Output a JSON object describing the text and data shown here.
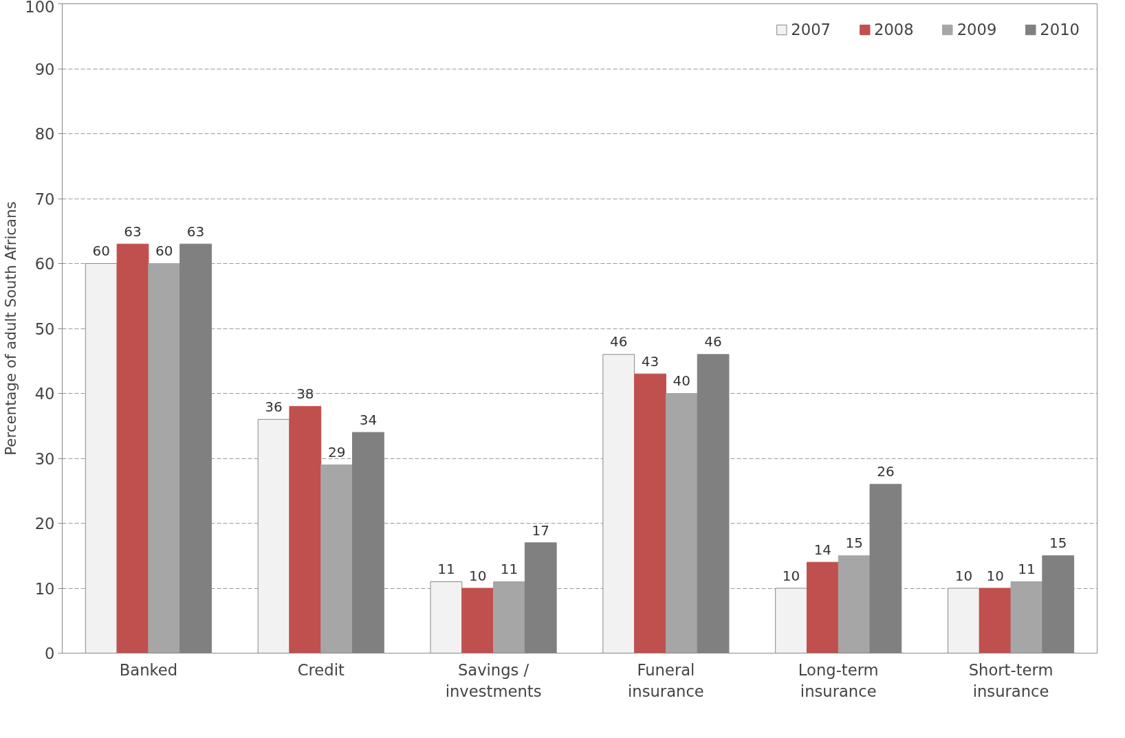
{
  "chart_data": {
    "type": "bar",
    "ylabel": "Percentage of adult South Africans",
    "categories": [
      "Banked",
      "Credit",
      "Savings / investments",
      "Funeral insurance",
      "Long-term insurance",
      "Short-term insurance"
    ],
    "series": [
      {
        "name": "2007",
        "color": "#f2f2f2",
        "values": [
          60,
          36,
          11,
          46,
          10,
          10
        ]
      },
      {
        "name": "2008",
        "color": "#c0504d",
        "values": [
          63,
          38,
          10,
          43,
          14,
          10
        ]
      },
      {
        "name": "2009",
        "color": "#a6a6a6",
        "values": [
          60,
          29,
          11,
          40,
          15,
          11
        ]
      },
      {
        "name": "2010",
        "color": "#808080",
        "values": [
          63,
          34,
          17,
          46,
          26,
          15
        ]
      }
    ],
    "ylim": [
      0,
      100
    ],
    "yticks": [
      0,
      10,
      20,
      30,
      40,
      50,
      60,
      70,
      80,
      90,
      100
    ],
    "grid": "y",
    "legend": "top right",
    "data_labels": true
  }
}
